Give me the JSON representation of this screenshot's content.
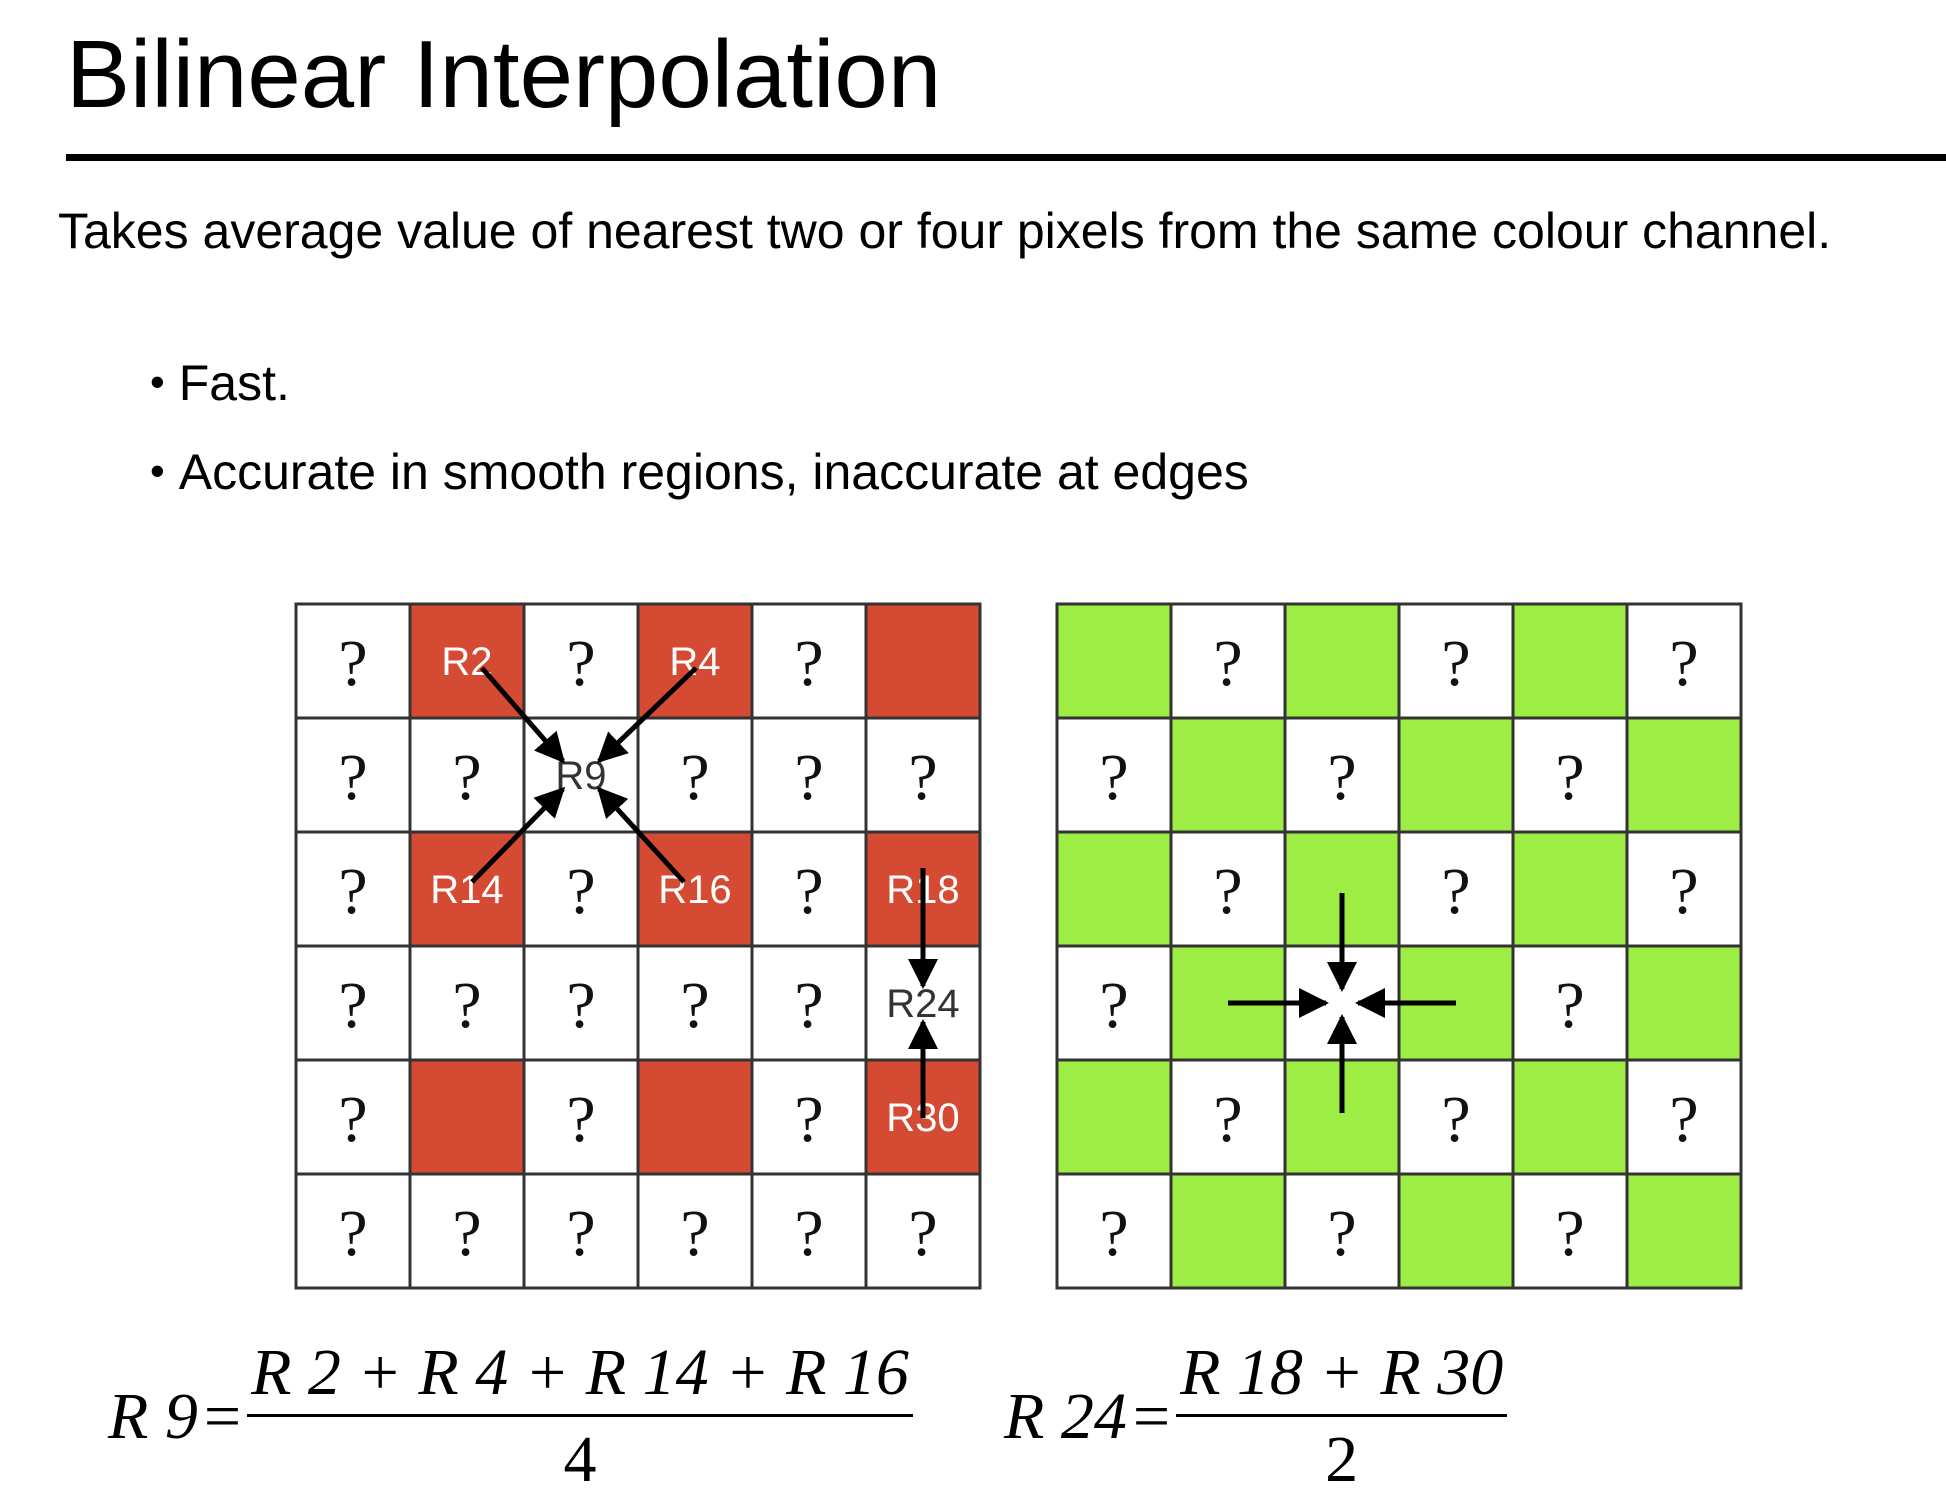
{
  "title": "Bilinear Interpolation",
  "intro": "Takes average value of nearest two or four pixels from the same colour channel.",
  "bullets": [
    "Fast.",
    "Accurate in smooth regions, inaccurate at edges"
  ],
  "colors": {
    "red": "#d54a33",
    "green": "#9ded44",
    "white": "#ffffff",
    "grid": "#333333"
  },
  "red_grid": {
    "cells": [
      [
        {
          "t": "q",
          "c": "w"
        },
        {
          "t": "R2",
          "c": "r"
        },
        {
          "t": "q",
          "c": "w"
        },
        {
          "t": "R4",
          "c": "r"
        },
        {
          "t": "q",
          "c": "w"
        },
        {
          "t": "",
          "c": "r"
        }
      ],
      [
        {
          "t": "q",
          "c": "w"
        },
        {
          "t": "q",
          "c": "w"
        },
        {
          "t": "R9",
          "c": "w"
        },
        {
          "t": "q",
          "c": "w"
        },
        {
          "t": "q",
          "c": "w"
        },
        {
          "t": "q",
          "c": "w"
        }
      ],
      [
        {
          "t": "q",
          "c": "w"
        },
        {
          "t": "R14",
          "c": "r"
        },
        {
          "t": "q",
          "c": "w"
        },
        {
          "t": "R16",
          "c": "r"
        },
        {
          "t": "q",
          "c": "w"
        },
        {
          "t": "R18",
          "c": "r"
        }
      ],
      [
        {
          "t": "q",
          "c": "w"
        },
        {
          "t": "q",
          "c": "w"
        },
        {
          "t": "q",
          "c": "w"
        },
        {
          "t": "q",
          "c": "w"
        },
        {
          "t": "q",
          "c": "w"
        },
        {
          "t": "R24",
          "c": "w"
        }
      ],
      [
        {
          "t": "q",
          "c": "w"
        },
        {
          "t": "",
          "c": "r"
        },
        {
          "t": "q",
          "c": "w"
        },
        {
          "t": "",
          "c": "r"
        },
        {
          "t": "q",
          "c": "w"
        },
        {
          "t": "R30",
          "c": "r"
        }
      ],
      [
        {
          "t": "q",
          "c": "w"
        },
        {
          "t": "q",
          "c": "w"
        },
        {
          "t": "q",
          "c": "w"
        },
        {
          "t": "q",
          "c": "w"
        },
        {
          "t": "q",
          "c": "w"
        },
        {
          "t": "q",
          "c": "w"
        }
      ]
    ]
  },
  "green_grid": {
    "cells": [
      [
        {
          "t": "",
          "c": "g"
        },
        {
          "t": "q",
          "c": "w"
        },
        {
          "t": "",
          "c": "g"
        },
        {
          "t": "q",
          "c": "w"
        },
        {
          "t": "",
          "c": "g"
        },
        {
          "t": "q",
          "c": "w"
        }
      ],
      [
        {
          "t": "q",
          "c": "w"
        },
        {
          "t": "",
          "c": "g"
        },
        {
          "t": "q",
          "c": "w"
        },
        {
          "t": "",
          "c": "g"
        },
        {
          "t": "q",
          "c": "w"
        },
        {
          "t": "",
          "c": "g"
        }
      ],
      [
        {
          "t": "",
          "c": "g"
        },
        {
          "t": "q",
          "c": "w"
        },
        {
          "t": "",
          "c": "g"
        },
        {
          "t": "q",
          "c": "w"
        },
        {
          "t": "",
          "c": "g"
        },
        {
          "t": "q",
          "c": "w"
        }
      ],
      [
        {
          "t": "q",
          "c": "w"
        },
        {
          "t": "",
          "c": "g"
        },
        {
          "t": "",
          "c": "w"
        },
        {
          "t": "",
          "c": "g"
        },
        {
          "t": "q",
          "c": "w"
        },
        {
          "t": "",
          "c": "g"
        }
      ],
      [
        {
          "t": "",
          "c": "g"
        },
        {
          "t": "q",
          "c": "w"
        },
        {
          "t": "",
          "c": "g"
        },
        {
          "t": "q",
          "c": "w"
        },
        {
          "t": "",
          "c": "g"
        },
        {
          "t": "q",
          "c": "w"
        }
      ],
      [
        {
          "t": "q",
          "c": "w"
        },
        {
          "t": "",
          "c": "g"
        },
        {
          "t": "q",
          "c": "w"
        },
        {
          "t": "",
          "c": "g"
        },
        {
          "t": "q",
          "c": "w"
        },
        {
          "t": "",
          "c": "g"
        }
      ]
    ]
  },
  "question_mark": "?",
  "formula_r9": {
    "lhs": "R 9",
    "eq": "=",
    "numerator": "R 2 + R 4 + R 14 + R 16",
    "denominator": "4"
  },
  "formula_r24": {
    "lhs": "R 24",
    "eq": "=",
    "numerator": "R 18 + R 30",
    "denominator": "2"
  }
}
